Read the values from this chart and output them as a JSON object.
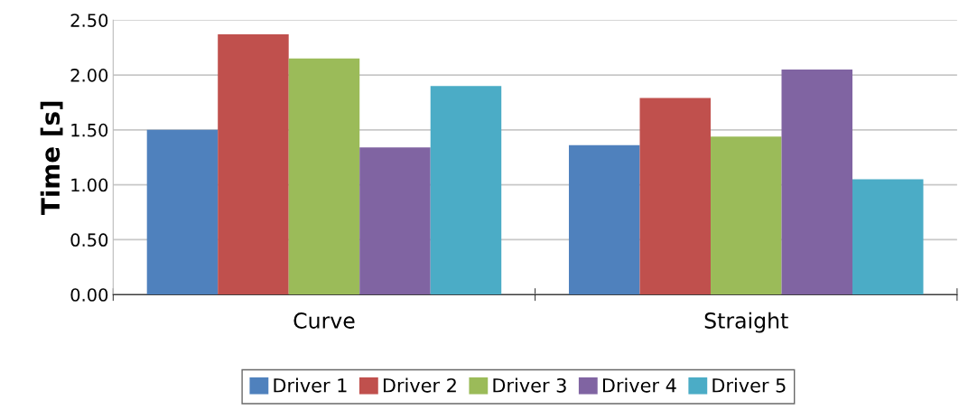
{
  "chart_data": {
    "type": "bar",
    "ylabel": "Time [s]",
    "categories": [
      "Curve",
      "Straight"
    ],
    "series": [
      {
        "name": "Driver 1",
        "color": "#4f81bd",
        "values": [
          1.5,
          1.36
        ]
      },
      {
        "name": "Driver 2",
        "color": "#c0504d",
        "values": [
          2.37,
          1.79
        ]
      },
      {
        "name": "Driver 3",
        "color": "#9bbb59",
        "values": [
          2.15,
          1.44
        ]
      },
      {
        "name": "Driver 4",
        "color": "#8064a2",
        "values": [
          1.34,
          2.05
        ]
      },
      {
        "name": "Driver 5",
        "color": "#4bacc6",
        "values": [
          1.9,
          1.05
        ]
      }
    ],
    "ylim": [
      0,
      2.5
    ],
    "yticks": [
      {
        "value": 0,
        "label": "0.00"
      },
      {
        "value": 0.5,
        "label": "0.50"
      },
      {
        "value": 1,
        "label": "1.00"
      },
      {
        "value": 1.5,
        "label": "1.50"
      },
      {
        "value": 2,
        "label": "2.00"
      },
      {
        "value": 2.5,
        "label": "2.50"
      }
    ],
    "grid": "y",
    "legend": "bottom"
  }
}
